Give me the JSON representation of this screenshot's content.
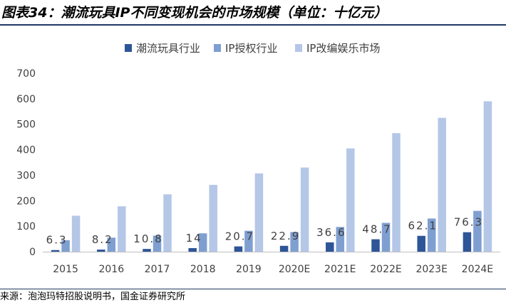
{
  "figure": {
    "title": "图表34：潮流玩具IP不同变现机会的市场规模（单位：十亿元）",
    "source": "来源：泡泡玛特招股说明书，国金证券研究所"
  },
  "chart_data": {
    "type": "bar",
    "categories": [
      "2015",
      "2016",
      "2017",
      "2018",
      "2019",
      "2020E",
      "2021E",
      "2022E",
      "2023E",
      "2024E"
    ],
    "series": [
      {
        "name": "潮流玩具行业",
        "color": "#2e5597",
        "values": [
          6.3,
          8.2,
          10.8,
          14,
          20.7,
          22.9,
          36.6,
          48.7,
          62.1,
          76.3
        ],
        "labels": [
          "6.3",
          "8.2",
          "10.8",
          "14",
          "20.7",
          "22.9",
          "36.6",
          "48.7",
          "62.1",
          "76.3"
        ]
      },
      {
        "name": "IP授权行业",
        "color": "#7f9fd1",
        "values": [
          45,
          55,
          63,
          72,
          82,
          77,
          97,
          113,
          130,
          160
        ]
      },
      {
        "name": "IP改编娱乐市场",
        "color": "#b4c7e7",
        "values": [
          141,
          178,
          225,
          262,
          307,
          330,
          405,
          465,
          525,
          590
        ]
      }
    ],
    "yticks": [
      "0",
      "100",
      "200",
      "300",
      "400",
      "500",
      "600",
      "700"
    ],
    "ylim": [
      0,
      700
    ],
    "grid": false,
    "legend_position": "top"
  }
}
